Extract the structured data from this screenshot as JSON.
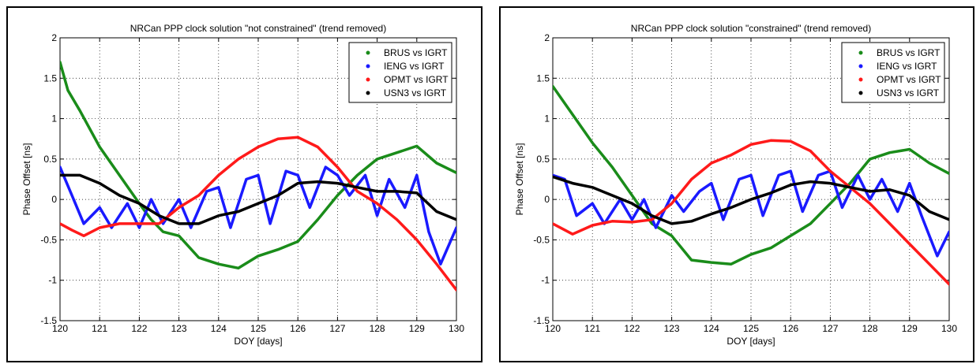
{
  "charts": [
    {
      "type": "line",
      "title": "NRCan PPP clock solution \"not constrained\" (trend removed)",
      "xlabel": "DOY [days]",
      "ylabel": "Phase Offset [ns]",
      "xlim": [
        120,
        130
      ],
      "ylim": [
        -1.5,
        2
      ],
      "xticks": [
        "120",
        "121",
        "122",
        "123",
        "124",
        "125",
        "126",
        "127",
        "128",
        "129",
        "130"
      ],
      "yticks": [
        "-1.5",
        "-1",
        "-0.5",
        "0",
        "0.5",
        "1",
        "1.5",
        "2"
      ],
      "grid": true,
      "legend_position": "top-right",
      "series": [
        {
          "name": "BRUS vs IGRT",
          "color": "#1a8c1a",
          "x": [
            120,
            120.2,
            120.5,
            121,
            121.5,
            122,
            122.3,
            122.6,
            123,
            123.5,
            124,
            124.5,
            125,
            125.5,
            126,
            126.5,
            127,
            127.5,
            128,
            128.5,
            129,
            129.5,
            130
          ],
          "y": [
            1.7,
            1.35,
            1.1,
            0.65,
            0.3,
            -0.05,
            -0.25,
            -0.4,
            -0.45,
            -0.72,
            -0.8,
            -0.85,
            -0.7,
            -0.62,
            -0.52,
            -0.25,
            0.05,
            0.3,
            0.5,
            0.58,
            0.66,
            0.45,
            0.33
          ]
        },
        {
          "name": "IENG vs IGRT",
          "color": "#1a1aff",
          "x": [
            120,
            120.3,
            120.6,
            121,
            121.3,
            121.7,
            122,
            122.3,
            122.6,
            123,
            123.3,
            123.7,
            124,
            124.3,
            124.7,
            125,
            125.3,
            125.7,
            126,
            126.3,
            126.7,
            127,
            127.3,
            127.7,
            128,
            128.3,
            128.7,
            129,
            129.3,
            129.6,
            130
          ],
          "y": [
            0.4,
            0.05,
            -0.3,
            -0.1,
            -0.35,
            -0.05,
            -0.35,
            0.0,
            -0.3,
            0.0,
            -0.35,
            0.1,
            0.15,
            -0.35,
            0.25,
            0.3,
            -0.3,
            0.35,
            0.3,
            -0.1,
            0.4,
            0.3,
            0.05,
            0.3,
            -0.2,
            0.25,
            -0.1,
            0.3,
            -0.4,
            -0.8,
            -0.35
          ]
        },
        {
          "name": "OPMT vs IGRT",
          "color": "#ff1a1a",
          "x": [
            120,
            120.3,
            120.6,
            121,
            121.5,
            122,
            122.5,
            123,
            123.5,
            124,
            124.5,
            125,
            125.5,
            126,
            126.5,
            127,
            127.5,
            128,
            128.5,
            129,
            129.5,
            130
          ],
          "y": [
            -0.3,
            -0.38,
            -0.45,
            -0.35,
            -0.3,
            -0.3,
            -0.3,
            -0.1,
            0.05,
            0.3,
            0.5,
            0.65,
            0.75,
            0.77,
            0.65,
            0.4,
            0.1,
            -0.05,
            -0.25,
            -0.5,
            -0.8,
            -1.12
          ]
        },
        {
          "name": "USN3 vs IGRT",
          "color": "#000000",
          "x": [
            120,
            120.5,
            121,
            121.5,
            122,
            122.5,
            123,
            123.5,
            124,
            124.5,
            125,
            125.5,
            126,
            126.5,
            127,
            127.5,
            128,
            128.5,
            129,
            129.5,
            130
          ],
          "y": [
            0.3,
            0.3,
            0.2,
            0.05,
            -0.05,
            -0.2,
            -0.3,
            -0.3,
            -0.2,
            -0.15,
            -0.05,
            0.05,
            0.2,
            0.22,
            0.2,
            0.15,
            0.1,
            0.1,
            0.08,
            -0.15,
            -0.25
          ]
        }
      ]
    },
    {
      "type": "line",
      "title": "NRCan PPP clock solution \"constrained\" (trend removed)",
      "xlabel": "DOY [days]",
      "ylabel": "Phase Offset [ns]",
      "xlim": [
        120,
        130
      ],
      "ylim": [
        -1.5,
        2
      ],
      "xticks": [
        "120",
        "121",
        "122",
        "123",
        "124",
        "125",
        "126",
        "127",
        "128",
        "129",
        "130"
      ],
      "yticks": [
        "-1.5",
        "-1",
        "-0.5",
        "0",
        "0.5",
        "1",
        "1.5",
        "2"
      ],
      "grid": true,
      "legend_position": "top-right",
      "series": [
        {
          "name": "BRUS vs IGRT",
          "color": "#1a8c1a",
          "x": [
            120,
            120.5,
            121,
            121.5,
            122,
            122.5,
            123,
            123.5,
            124,
            124.5,
            125,
            125.5,
            126,
            126.5,
            127,
            127.5,
            128,
            128.5,
            129,
            129.5,
            130
          ],
          "y": [
            1.4,
            1.05,
            0.7,
            0.4,
            0.05,
            -0.3,
            -0.45,
            -0.75,
            -0.78,
            -0.8,
            -0.68,
            -0.6,
            -0.45,
            -0.3,
            -0.05,
            0.2,
            0.5,
            0.58,
            0.62,
            0.45,
            0.32
          ]
        },
        {
          "name": "IENG vs IGRT",
          "color": "#1a1aff",
          "x": [
            120,
            120.3,
            120.6,
            121,
            121.3,
            121.7,
            122,
            122.3,
            122.6,
            123,
            123.3,
            123.7,
            124,
            124.3,
            124.7,
            125,
            125.3,
            125.7,
            126,
            126.3,
            126.7,
            127,
            127.3,
            127.7,
            128,
            128.3,
            128.7,
            129,
            129.3,
            129.7,
            130
          ],
          "y": [
            0.3,
            0.25,
            -0.2,
            -0.05,
            -0.3,
            0.0,
            -0.25,
            0.0,
            -0.35,
            0.05,
            -0.15,
            0.1,
            0.2,
            -0.25,
            0.25,
            0.3,
            -0.2,
            0.3,
            0.35,
            -0.15,
            0.3,
            0.35,
            -0.1,
            0.3,
            0.0,
            0.25,
            -0.15,
            0.2,
            -0.2,
            -0.7,
            -0.4
          ]
        },
        {
          "name": "OPMT vs IGRT",
          "color": "#ff1a1a",
          "x": [
            120,
            120.5,
            121,
            121.5,
            122,
            122.5,
            123,
            123.5,
            124,
            124.5,
            125,
            125.5,
            126,
            126.5,
            127,
            127.5,
            128,
            128.5,
            129,
            129.5,
            130
          ],
          "y": [
            -0.3,
            -0.43,
            -0.32,
            -0.27,
            -0.28,
            -0.25,
            -0.05,
            0.25,
            0.45,
            0.55,
            0.68,
            0.73,
            0.72,
            0.6,
            0.35,
            0.15,
            -0.05,
            -0.3,
            -0.55,
            -0.8,
            -1.05
          ]
        },
        {
          "name": "USN3 vs IGRT",
          "color": "#000000",
          "x": [
            120,
            120.5,
            121,
            121.5,
            122,
            122.5,
            123,
            123.5,
            124,
            124.5,
            125,
            125.5,
            126,
            126.5,
            127,
            127.5,
            128,
            128.5,
            129,
            129.5,
            130
          ],
          "y": [
            0.28,
            0.2,
            0.15,
            0.05,
            -0.05,
            -0.2,
            -0.3,
            -0.27,
            -0.18,
            -0.1,
            0.0,
            0.08,
            0.18,
            0.22,
            0.2,
            0.15,
            0.1,
            0.12,
            0.05,
            -0.15,
            -0.25
          ]
        }
      ]
    }
  ]
}
